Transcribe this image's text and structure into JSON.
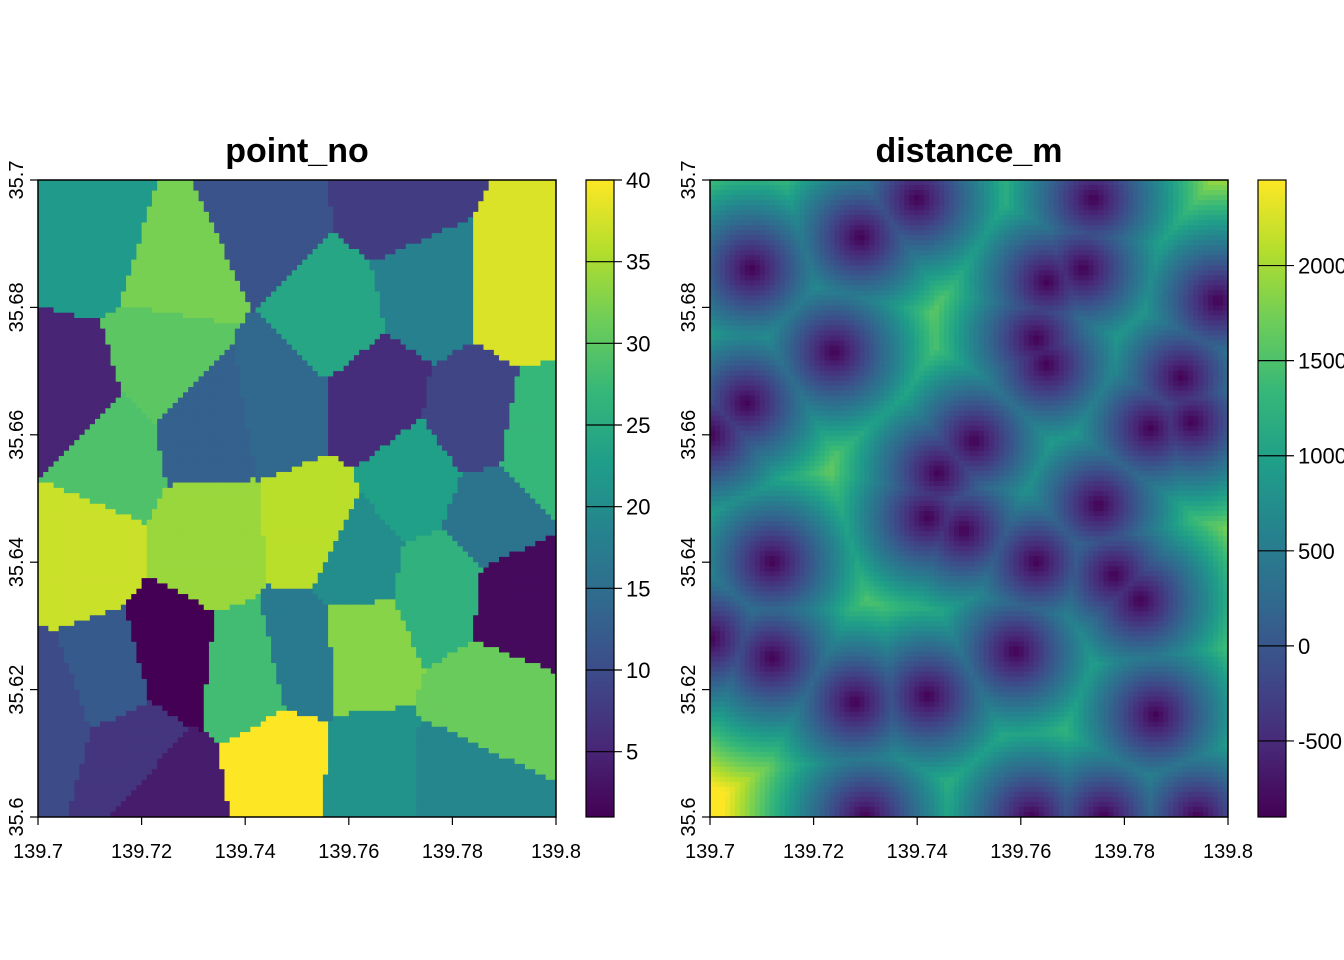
{
  "chart_data": [
    {
      "type": "heatmap",
      "title": "point_no",
      "xlabel": "",
      "ylabel": "",
      "xlim": [
        139.7,
        139.8
      ],
      "ylim": [
        35.6,
        35.7
      ],
      "x_ticks": [
        "139.7",
        "139.72",
        "139.74",
        "139.76",
        "139.78",
        "139.8"
      ],
      "y_ticks": [
        "35.6",
        "35.62",
        "35.64",
        "35.66",
        "35.68",
        "35.7"
      ],
      "colorbar": {
        "min": 1,
        "max": 40,
        "ticks": [
          "5",
          "10",
          "15",
          "20",
          "25",
          "30",
          "35",
          "40"
        ],
        "tick_values": [
          5,
          10,
          15,
          20,
          25,
          30,
          35,
          40
        ]
      },
      "colormap": [
        "#440154",
        "#482878",
        "#3E4A89",
        "#31688E",
        "#26828E",
        "#1F9E89",
        "#35B779",
        "#6DCD59",
        "#B4DE2C",
        "#FDE725"
      ],
      "regions": [
        {
          "x": 139.711,
          "y": 35.692,
          "value": 22
        },
        {
          "x": 139.727,
          "y": 35.686,
          "value": 32
        },
        {
          "x": 139.743,
          "y": 35.695,
          "value": 11
        },
        {
          "x": 139.77,
          "y": 35.697,
          "value": 8
        },
        {
          "x": 139.793,
          "y": 35.683,
          "value": 38
        },
        {
          "x": 139.725,
          "y": 35.672,
          "value": 30
        },
        {
          "x": 139.757,
          "y": 35.678,
          "value": 24
        },
        {
          "x": 139.775,
          "y": 35.683,
          "value": 18
        },
        {
          "x": 139.706,
          "y": 35.665,
          "value": 5
        },
        {
          "x": 139.747,
          "y": 35.665,
          "value": 14
        },
        {
          "x": 139.765,
          "y": 35.666,
          "value": 6
        },
        {
          "x": 139.784,
          "y": 35.662,
          "value": 9
        },
        {
          "x": 139.797,
          "y": 35.659,
          "value": 27
        },
        {
          "x": 139.733,
          "y": 35.662,
          "value": 13
        },
        {
          "x": 139.713,
          "y": 35.657,
          "value": 29
        },
        {
          "x": 139.708,
          "y": 35.642,
          "value": 37
        },
        {
          "x": 139.734,
          "y": 35.643,
          "value": 34
        },
        {
          "x": 139.753,
          "y": 35.645,
          "value": 36
        },
        {
          "x": 139.773,
          "y": 35.653,
          "value": 23
        },
        {
          "x": 139.787,
          "y": 35.647,
          "value": 16
        },
        {
          "x": 139.761,
          "y": 35.64,
          "value": 20
        },
        {
          "x": 139.778,
          "y": 35.636,
          "value": 26
        },
        {
          "x": 139.792,
          "y": 35.634,
          "value": 2
        },
        {
          "x": 139.714,
          "y": 35.621,
          "value": 12
        },
        {
          "x": 139.726,
          "y": 35.625,
          "value": 1
        },
        {
          "x": 139.74,
          "y": 35.623,
          "value": 28
        },
        {
          "x": 139.762,
          "y": 35.627,
          "value": 33
        },
        {
          "x": 139.751,
          "y": 35.626,
          "value": 17
        },
        {
          "x": 139.787,
          "y": 35.618,
          "value": 31
        },
        {
          "x": 139.718,
          "y": 35.611,
          "value": 7
        },
        {
          "x": 139.702,
          "y": 35.616,
          "value": 10
        },
        {
          "x": 139.725,
          "y": 35.603,
          "value": 4
        },
        {
          "x": 139.747,
          "y": 35.607,
          "value": 40
        },
        {
          "x": 139.764,
          "y": 35.606,
          "value": 21
        },
        {
          "x": 139.782,
          "y": 35.605,
          "value": 19
        }
      ]
    },
    {
      "type": "heatmap",
      "title": "distance_m",
      "xlabel": "",
      "ylabel": "",
      "xlim": [
        139.7,
        139.8
      ],
      "ylim": [
        35.6,
        35.7
      ],
      "x_ticks": [
        "139.7",
        "139.72",
        "139.74",
        "139.76",
        "139.78",
        "139.8"
      ],
      "y_ticks": [
        "35.6",
        "35.62",
        "35.64",
        "35.66",
        "35.68",
        "35.7"
      ],
      "colorbar": {
        "min": -900,
        "max": 2450,
        "ticks": [
          "-500",
          "0",
          "500",
          "1000",
          "1500",
          "2000"
        ],
        "tick_values": [
          -500,
          0,
          500,
          1000,
          1500,
          2000
        ]
      },
      "colormap": [
        "#440154",
        "#482878",
        "#3E4A89",
        "#31688E",
        "#26828E",
        "#1F9E89",
        "#35B779",
        "#6DCD59",
        "#B4DE2C",
        "#FDE725"
      ],
      "points": [
        {
          "x": 139.7,
          "y": 35.66
        },
        {
          "x": 139.708,
          "y": 35.686
        },
        {
          "x": 139.707,
          "y": 35.665
        },
        {
          "x": 139.712,
          "y": 35.64
        },
        {
          "x": 139.712,
          "y": 35.625
        },
        {
          "x": 139.7,
          "y": 35.628
        },
        {
          "x": 139.724,
          "y": 35.673
        },
        {
          "x": 139.729,
          "y": 35.691
        },
        {
          "x": 139.74,
          "y": 35.697
        },
        {
          "x": 139.742,
          "y": 35.647
        },
        {
          "x": 139.749,
          "y": 35.645
        },
        {
          "x": 139.744,
          "y": 35.654
        },
        {
          "x": 139.751,
          "y": 35.659
        },
        {
          "x": 139.728,
          "y": 35.618
        },
        {
          "x": 139.742,
          "y": 35.619
        },
        {
          "x": 139.73,
          "y": 35.6
        },
        {
          "x": 139.763,
          "y": 35.675
        },
        {
          "x": 139.765,
          "y": 35.671
        },
        {
          "x": 139.765,
          "y": 35.684
        },
        {
          "x": 139.774,
          "y": 35.697
        },
        {
          "x": 139.772,
          "y": 35.686
        },
        {
          "x": 139.759,
          "y": 35.626
        },
        {
          "x": 139.762,
          "y": 35.6
        },
        {
          "x": 139.763,
          "y": 35.64
        },
        {
          "x": 139.775,
          "y": 35.649
        },
        {
          "x": 139.778,
          "y": 35.638
        },
        {
          "x": 139.783,
          "y": 35.634
        },
        {
          "x": 139.785,
          "y": 35.661
        },
        {
          "x": 139.786,
          "y": 35.616
        },
        {
          "x": 139.793,
          "y": 35.662
        },
        {
          "x": 139.791,
          "y": 35.669
        },
        {
          "x": 139.798,
          "y": 35.681
        },
        {
          "x": 139.776,
          "y": 35.6
        },
        {
          "x": 139.794,
          "y": 35.6
        }
      ]
    }
  ]
}
